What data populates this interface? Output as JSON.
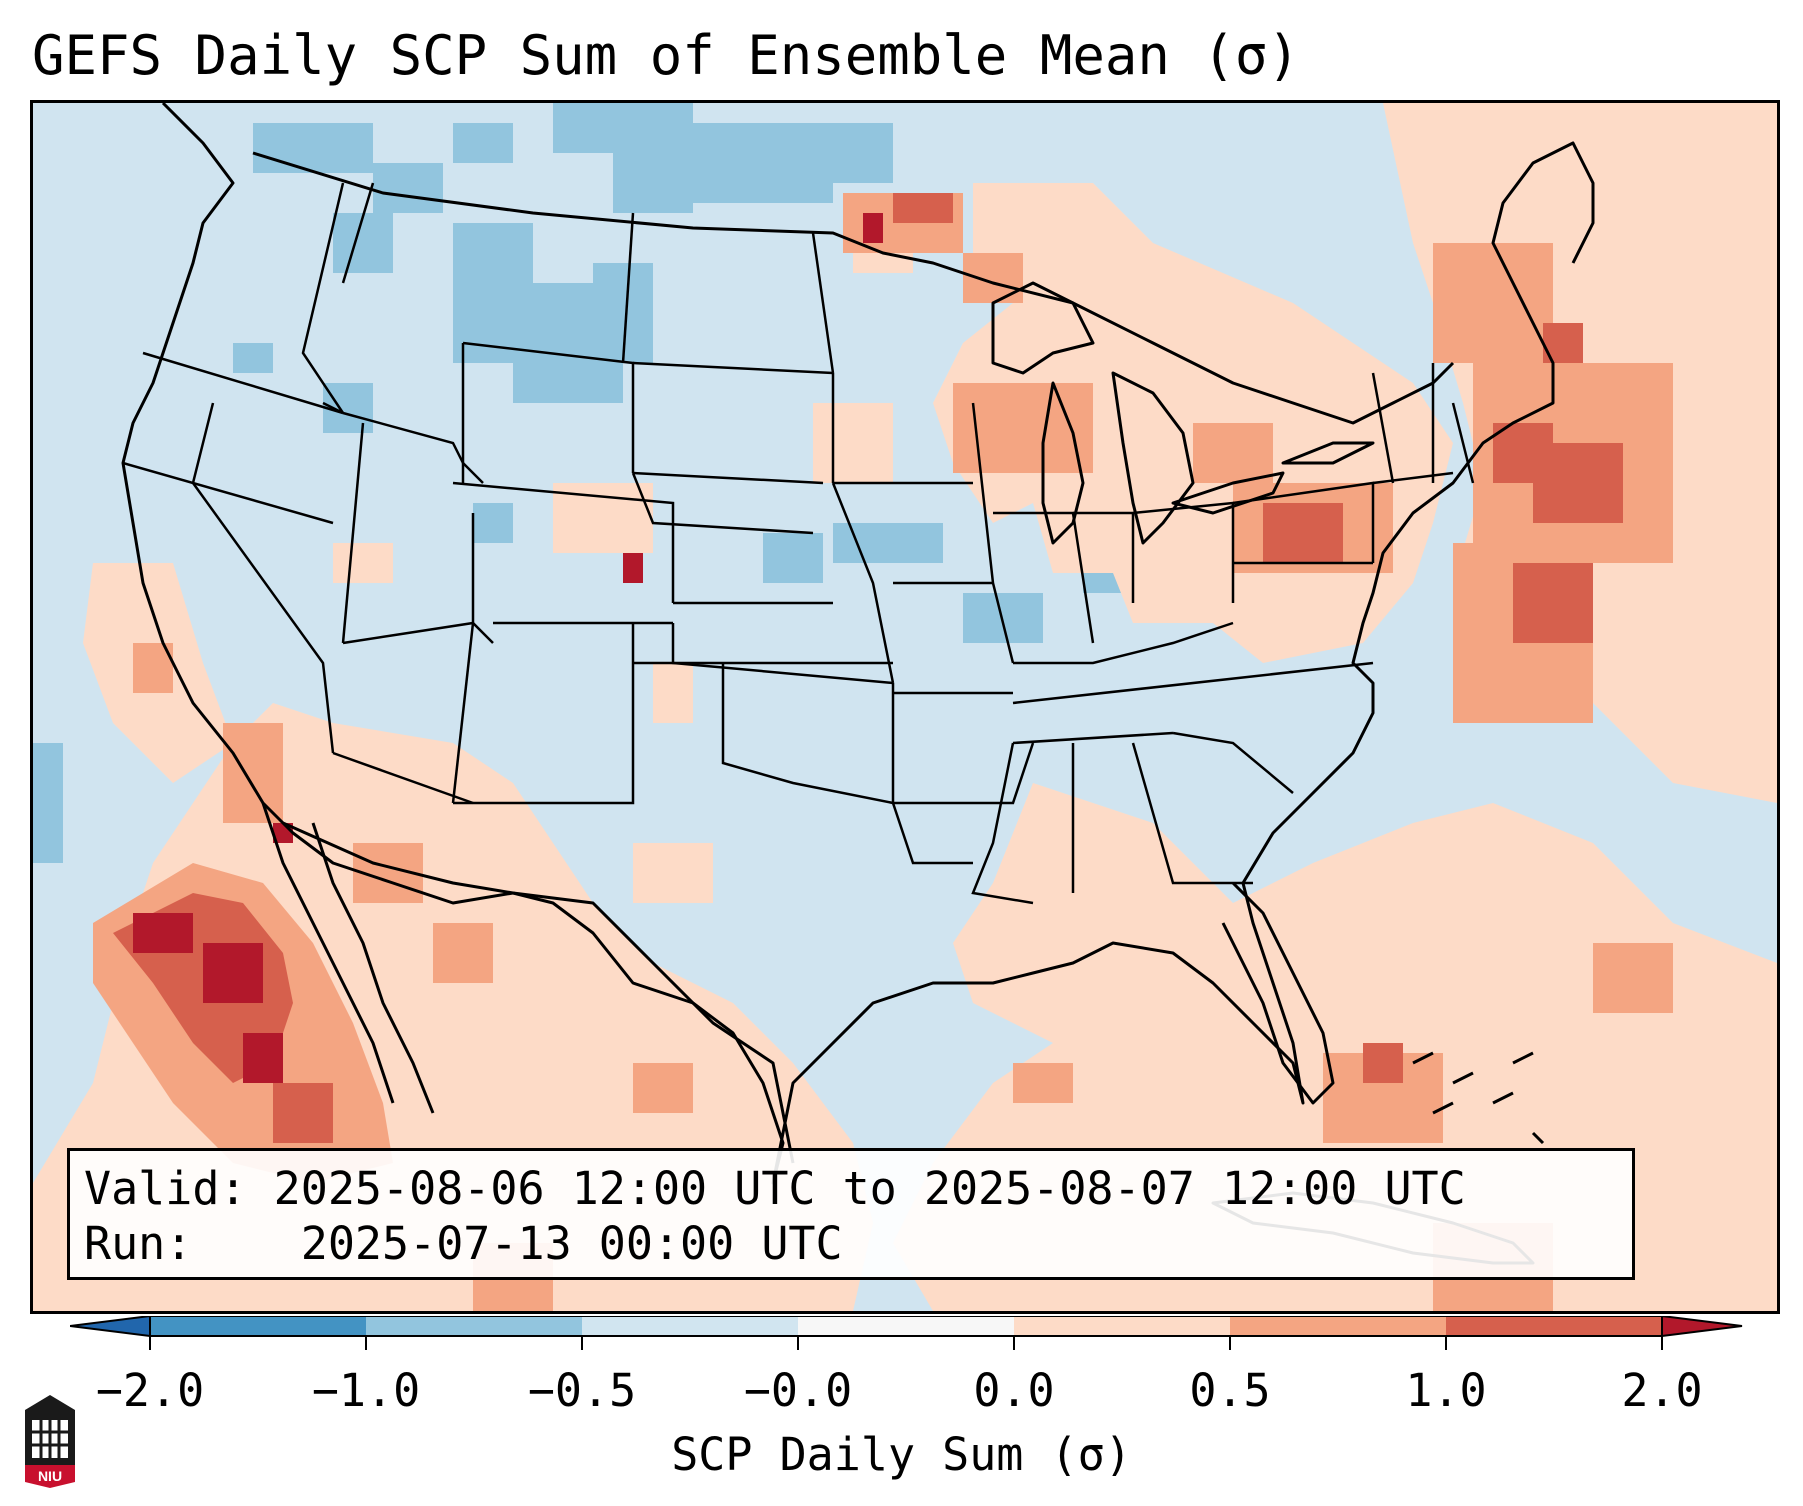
{
  "title": "GEFS Daily SCP Sum of Ensemble Mean (σ)",
  "info": {
    "valid_label": "Valid:",
    "valid_value": "2025-08-06 12:00 UTC to 2025-08-07 12:00 UTC",
    "run_label": "Run:",
    "run_value": "2025-07-13 00:00 UTC"
  },
  "colorbar": {
    "label": "SCP Daily Sum (σ)",
    "ticks": [
      "−2.0",
      "−1.0",
      "−0.5",
      "−0.0",
      "0.0",
      "0.5",
      "1.0",
      "2.0"
    ],
    "colors": {
      "extend_low": "#2166ac",
      "bin_m2_m1": "#4393c3",
      "bin_m1_m05": "#92c5de",
      "bin_m05_m0": "#d1e5f0",
      "bin_m0_0": "#f7f7f7",
      "bin_0_05": "#fddbc7",
      "bin_05_1": "#f4a582",
      "bin_1_2": "#d6604d",
      "extend_high": "#b2182b"
    }
  },
  "logo": {
    "text": "NIU"
  },
  "map": {
    "background_color": "#d0e4f0",
    "icons": [
      "us-state-borders",
      "coastlines",
      "scp-anomaly-field"
    ]
  }
}
